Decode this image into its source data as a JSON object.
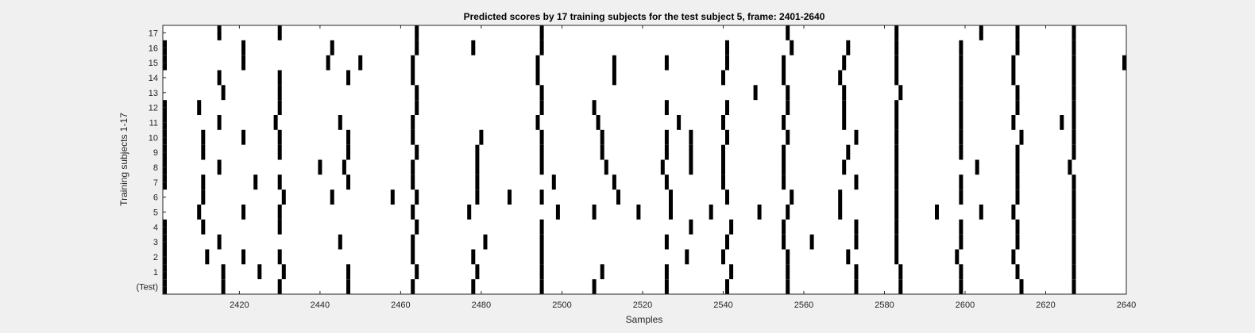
{
  "chart_data": {
    "type": "heatmap",
    "title": "Predicted scores by 17 training subjects for the test subject 5, frame: 2401-2640",
    "xlabel": "Samples",
    "ylabel": "Training subjects 1-17",
    "xlim": [
      2401,
      2640
    ],
    "x_ticks": [
      2420,
      2440,
      2460,
      2480,
      2500,
      2520,
      2540,
      2560,
      2580,
      2600,
      2620,
      2640
    ],
    "rows": [
      {
        "label": "(Test)",
        "x": [
          2401,
          2416,
          2430,
          2447,
          2463,
          2478,
          2495,
          2508,
          2526,
          2541,
          2556,
          2573,
          2584,
          2599,
          2614,
          2627
        ]
      },
      {
        "label": "1",
        "x": [
          2401,
          2416,
          2425,
          2431,
          2447,
          2464,
          2479,
          2495,
          2510,
          2526,
          2542,
          2556,
          2573,
          2584,
          2599,
          2613,
          2627
        ]
      },
      {
        "label": "2",
        "x": [
          2401,
          2412,
          2421,
          2430,
          2463,
          2478,
          2495,
          2531,
          2540,
          2556,
          2571,
          2583,
          2598,
          2612,
          2627
        ]
      },
      {
        "label": "3",
        "x": [
          2401,
          2415,
          2445,
          2463,
          2481,
          2495,
          2526,
          2541,
          2555,
          2562,
          2573,
          2583,
          2599,
          2613,
          2627
        ]
      },
      {
        "label": "4",
        "x": [
          2401,
          2411,
          2430,
          2464,
          2495,
          2532,
          2542,
          2555,
          2573,
          2583,
          2599,
          2613,
          2627
        ]
      },
      {
        "label": "5",
        "x": [
          2410,
          2421,
          2430,
          2463,
          2477,
          2499,
          2508,
          2519,
          2527,
          2537,
          2549,
          2556,
          2569,
          2583,
          2593,
          2604,
          2612,
          2627
        ]
      },
      {
        "label": "6",
        "x": [
          2411,
          2431,
          2443,
          2458,
          2464,
          2479,
          2487,
          2495,
          2514,
          2527,
          2541,
          2557,
          2569,
          2583,
          2599,
          2613,
          2627
        ]
      },
      {
        "label": "7",
        "x": [
          2401,
          2411,
          2424,
          2430,
          2447,
          2463,
          2479,
          2498,
          2513,
          2526,
          2540,
          2555,
          2573,
          2583,
          2599,
          2613,
          2627
        ]
      },
      {
        "label": "8",
        "x": [
          2401,
          2415,
          2440,
          2446,
          2463,
          2479,
          2495,
          2511,
          2525,
          2532,
          2540,
          2555,
          2570,
          2583,
          2603,
          2613,
          2626
        ]
      },
      {
        "label": "9",
        "x": [
          2401,
          2411,
          2430,
          2447,
          2464,
          2479,
          2495,
          2510,
          2526,
          2532,
          2540,
          2555,
          2571,
          2583,
          2599,
          2613,
          2627
        ]
      },
      {
        "label": "10",
        "x": [
          2401,
          2411,
          2421,
          2430,
          2447,
          2463,
          2480,
          2495,
          2510,
          2526,
          2532,
          2541,
          2556,
          2573,
          2583,
          2599,
          2614,
          2627
        ]
      },
      {
        "label": "11",
        "x": [
          2401,
          2415,
          2429,
          2445,
          2463,
          2494,
          2509,
          2529,
          2540,
          2555,
          2570,
          2583,
          2599,
          2612,
          2624,
          2627
        ]
      },
      {
        "label": "12",
        "x": [
          2401,
          2410,
          2430,
          2464,
          2495,
          2508,
          2526,
          2541,
          2556,
          2570,
          2583,
          2599,
          2613,
          2627
        ]
      },
      {
        "label": "13",
        "x": [
          2416,
          2430,
          2464,
          2495,
          2548,
          2556,
          2570,
          2584,
          2599,
          2613,
          2627
        ]
      },
      {
        "label": "14",
        "x": [
          2415,
          2430,
          2447,
          2463,
          2494,
          2513,
          2540,
          2555,
          2569,
          2583,
          2599,
          2612,
          2627
        ]
      },
      {
        "label": "15",
        "x": [
          2401,
          2421,
          2442,
          2450,
          2463,
          2494,
          2513,
          2526,
          2541,
          2555,
          2570,
          2583,
          2599,
          2612,
          2627,
          2640
        ]
      },
      {
        "label": "16",
        "x": [
          2401,
          2421,
          2443,
          2464,
          2478,
          2495,
          2541,
          2557,
          2571,
          2583,
          2599,
          2613,
          2627
        ]
      },
      {
        "label": "17",
        "x": [
          2415,
          2430,
          2464,
          2495,
          2556,
          2583,
          2604,
          2613,
          2627
        ]
      }
    ],
    "grid": false,
    "colors": {
      "mark": "#000000",
      "plot_bg": "#ffffff",
      "figure_bg": "#f0f0f0"
    }
  }
}
